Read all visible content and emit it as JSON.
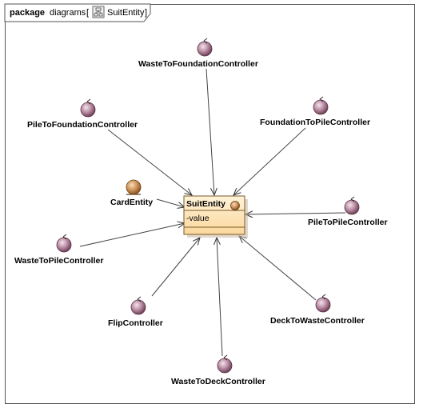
{
  "frame": {
    "keyword": "package",
    "diagram_kind": "diagrams",
    "bracket_open": "[",
    "diagram_name": "SuitEntity",
    "bracket_close": "]"
  },
  "entity": {
    "name": "SuitEntity",
    "attribute": "-value"
  },
  "card_entity": {
    "label": "CardEntity"
  },
  "controllers": [
    {
      "id": "waste-to-foundation",
      "label": "WasteToFoundationController"
    },
    {
      "id": "pile-to-foundation",
      "label": "PileToFoundationController"
    },
    {
      "id": "foundation-to-pile",
      "label": "FoundationToPileController"
    },
    {
      "id": "pile-to-pile",
      "label": "PileToPileController"
    },
    {
      "id": "waste-to-pile",
      "label": "WasteToPileController"
    },
    {
      "id": "flip",
      "label": "FlipController"
    },
    {
      "id": "deck-to-waste",
      "label": "DeckToWasteController"
    },
    {
      "id": "waste-to-deck",
      "label": "WasteToDeckController"
    }
  ],
  "colors": {
    "control_fill": "#b47e9a",
    "entity_fill": "#c98d55",
    "class_fill": "#fde4b4",
    "class_border": "#7a5a2a"
  }
}
